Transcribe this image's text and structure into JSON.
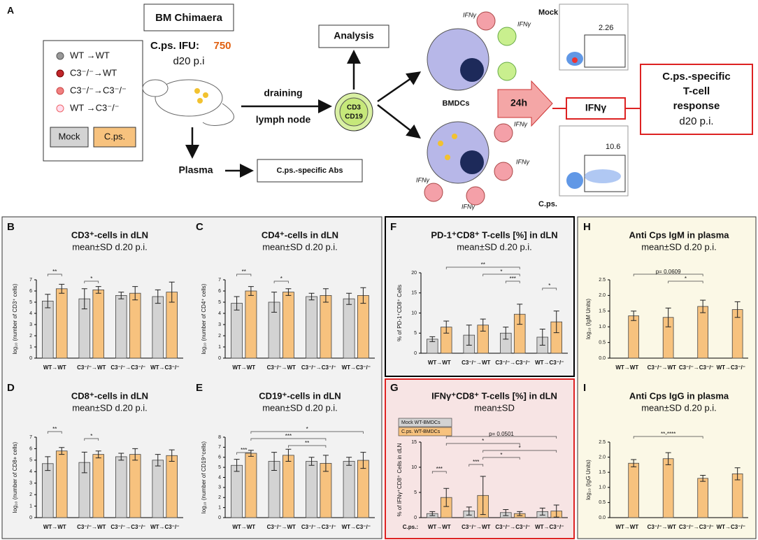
{
  "schematic": {
    "panel": "A",
    "title": "BM Chimaera",
    "ifu_label": "C.ps. IFU:",
    "ifu": 750,
    "day": "d20 p.i",
    "legend": [
      "WT →WT",
      "C3⁻/⁻→WT",
      "C3⁻/⁻→C3⁻/⁻",
      "WT →C3⁻/⁻"
    ],
    "groups": [
      "Mock",
      "C.ps."
    ],
    "route": [
      "draining",
      "lymph node"
    ],
    "markers": [
      "CD3",
      "CD19"
    ],
    "analysis": "Analysis",
    "plasma": "Plasma",
    "abs": "C.ps.-specific Abs",
    "cytokine": "IFNγ",
    "bmdc": "BMDCs",
    "time": "24h",
    "flow": [
      {
        "label": "Mock",
        "value": 2.26
      },
      {
        "label": "C.ps.",
        "value": 10.6
      }
    ],
    "result": [
      "C.ps.-specific",
      "T-cell",
      "response",
      "d20 p.i."
    ]
  },
  "chart_data": [
    {
      "type": "bar",
      "panel": "B",
      "title": "CD3⁺-cells in dLN",
      "subtitle": "mean±SD d.20 p.i.",
      "ylabel": "log₁₀ (number of CD3⁺ cells)",
      "categories": [
        "WT→WT",
        "C3⁻/⁻→WT",
        "C3⁻/⁻→C3⁻/⁻",
        "WT→C3⁻/⁻"
      ],
      "series": [
        {
          "color": "#d3d3d3",
          "values": [
            5.1,
            5.3,
            5.6,
            5.5
          ],
          "errors": [
            0.6,
            0.9,
            0.3,
            0.6
          ]
        },
        {
          "color": "#f7c27e",
          "values": [
            6.2,
            6.1,
            5.8,
            5.9
          ],
          "errors": [
            0.4,
            0.3,
            0.6,
            0.9
          ]
        }
      ],
      "ylim": [
        0,
        7
      ],
      "yticks": [
        0,
        1,
        2,
        3,
        4,
        5,
        6,
        7
      ],
      "annotations": [
        {
          "text": "**",
          "between": [
            0,
            1
          ]
        },
        {
          "text": "*",
          "between": [
            2,
            3
          ]
        }
      ]
    },
    {
      "type": "bar",
      "panel": "C",
      "title": "CD4⁺-cells in dLN",
      "subtitle": "mean±SD d.20 p.i.",
      "ylabel": "log₁₀ (number of CD4⁺ cells)",
      "categories": [
        "WT→WT",
        "C3⁻/⁻→WT",
        "C3⁻/⁻→C3⁻/⁻",
        "WT→C3⁻/⁻"
      ],
      "series": [
        {
          "color": "#d3d3d3",
          "values": [
            4.9,
            5.0,
            5.5,
            5.3
          ],
          "errors": [
            0.6,
            0.9,
            0.3,
            0.5
          ]
        },
        {
          "color": "#f7c27e",
          "values": [
            6.0,
            5.9,
            5.6,
            5.6
          ],
          "errors": [
            0.4,
            0.3,
            0.6,
            0.7
          ]
        }
      ],
      "ylim": [
        0,
        7
      ],
      "yticks": [
        0,
        1,
        2,
        3,
        4,
        5,
        6,
        7
      ],
      "annotations": [
        {
          "text": "**",
          "between": [
            0,
            1
          ]
        },
        {
          "text": "*",
          "between": [
            2,
            3
          ]
        }
      ]
    },
    {
      "type": "bar",
      "panel": "D",
      "title": "CD8⁺-cells in dLN",
      "subtitle": "mean±SD d.20 p.i.",
      "ylabel": "log₁₀ (number of CD8+ cells)",
      "categories": [
        "WT→WT",
        "C3⁻/⁻→WT",
        "C3⁻/⁻→C3⁻/⁻",
        "WT→C3⁻/⁻"
      ],
      "series": [
        {
          "color": "#d3d3d3",
          "values": [
            4.7,
            4.8,
            5.3,
            5.0
          ],
          "errors": [
            0.6,
            0.9,
            0.3,
            0.5
          ]
        },
        {
          "color": "#f7c27e",
          "values": [
            5.8,
            5.5,
            5.5,
            5.4
          ],
          "errors": [
            0.3,
            0.3,
            0.5,
            0.5
          ]
        }
      ],
      "ylim": [
        0,
        7
      ],
      "yticks": [
        0,
        1,
        2,
        3,
        4,
        5,
        6,
        7
      ],
      "annotations": [
        {
          "text": "**",
          "between": [
            0,
            1
          ]
        },
        {
          "text": "*",
          "between": [
            2,
            3
          ]
        }
      ]
    },
    {
      "type": "bar",
      "panel": "E",
      "title": "CD19⁺-cells in dLN",
      "subtitle": "mean±SD d.20 p.i.",
      "ylabel": "log₁₀ (number of CD19⁺cells)",
      "categories": [
        "WT→WT",
        "C3⁻/⁻→WT",
        "C3⁻/⁻→C3⁻/⁻",
        "WT→C3⁻/⁻"
      ],
      "series": [
        {
          "color": "#d3d3d3",
          "values": [
            5.2,
            5.6,
            5.6,
            5.6
          ],
          "errors": [
            0.6,
            0.9,
            0.4,
            0.4
          ]
        },
        {
          "color": "#f7c27e",
          "values": [
            6.4,
            6.2,
            5.4,
            5.7
          ],
          "errors": [
            0.3,
            0.6,
            0.8,
            0.8
          ]
        }
      ],
      "ylim": [
        0,
        8
      ],
      "yticks": [
        0,
        1,
        2,
        3,
        4,
        5,
        6,
        7,
        8
      ],
      "annotations": [
        {
          "text": "*",
          "between": [
            1,
            7
          ]
        },
        {
          "text": "***",
          "between": [
            1,
            5
          ]
        },
        {
          "text": "**",
          "between": [
            3,
            5
          ]
        },
        {
          "text": "***",
          "between": [
            0,
            1
          ]
        }
      ]
    },
    {
      "type": "bar",
      "panel": "F",
      "title": "PD-1⁺CD8⁺ T-cells [%] in dLN",
      "subtitle": "mean±SD d.20 p.i.",
      "ylabel": "% of PD-1⁺CD8⁺ Cells",
      "categories": [
        "WT→WT",
        "C3⁻/⁻→WT",
        "C3⁻/⁻→C3⁻/⁻",
        "WT→C3⁻/⁻"
      ],
      "series": [
        {
          "color": "#d3d3d3",
          "values": [
            3.5,
            4.5,
            5,
            4
          ],
          "errors": [
            0.6,
            2.5,
            1.5,
            2
          ]
        },
        {
          "color": "#f7c27e",
          "values": [
            6.5,
            7,
            9.7,
            7.8
          ],
          "errors": [
            1.5,
            1.5,
            2.5,
            2.7
          ]
        }
      ],
      "ylim": [
        0,
        20
      ],
      "yticks": [
        0,
        5,
        10,
        15,
        20
      ],
      "annotations": [
        {
          "text": "**",
          "between": [
            1,
            5
          ]
        },
        {
          "text": "*",
          "between": [
            3,
            5
          ]
        },
        {
          "text": "***",
          "between": [
            4,
            5
          ]
        },
        {
          "text": "*",
          "between": [
            6,
            7
          ]
        }
      ]
    },
    {
      "type": "bar",
      "panel": "G",
      "title": "IFNγ⁺CD8⁺ T-cells [%] in dLN",
      "subtitle": "mean±SD",
      "ylabel": "% of IFNγ⁺CD8⁺ Cells in dLN",
      "category_prefix": "C.ps.:",
      "categories": [
        "WT→WT",
        "C3⁻/⁻→WT",
        "C3⁻/⁻→C3⁻/⁻",
        "WT→C3⁻/⁻"
      ],
      "series": [
        {
          "name": "Mock WT-BMDCs",
          "color": "#d3d3d3",
          "values": [
            0.8,
            1.3,
            1,
            1.2
          ],
          "errors": [
            0.4,
            0.8,
            0.6,
            0.7
          ]
        },
        {
          "name": "C.ps. WT-BMDCs",
          "color": "#f7c27e",
          "values": [
            4,
            4.4,
            0.8,
            1.3
          ],
          "errors": [
            1.8,
            3.8,
            0.4,
            1.2
          ]
        }
      ],
      "ylim": [
        0,
        15
      ],
      "yticks": [
        0,
        5,
        10,
        15
      ],
      "annotations": [
        {
          "text": "p= 0.0501",
          "between": [
            1,
            7
          ]
        },
        {
          "text": "*",
          "between": [
            1,
            5
          ]
        },
        {
          "text": "*",
          "between": [
            3,
            7
          ]
        },
        {
          "text": "*",
          "between": [
            3,
            5
          ]
        },
        {
          "text": "***",
          "between": [
            2,
            3
          ]
        },
        {
          "text": "***",
          "between": [
            0,
            1
          ]
        }
      ]
    },
    {
      "type": "bar",
      "panel": "H",
      "title": "Anti Cps IgM in plasma",
      "subtitle": "mean±SD d.20 p.i.",
      "ylabel": "log₁₀ (IgM Units)",
      "categories": [
        "WT→WT",
        "C3⁻/⁻→WT",
        "C3⁻/⁻→C3⁻/⁻",
        "WT→C3⁻/⁻"
      ],
      "series": [
        {
          "color": "#d3d3d3",
          "values": [
            0,
            0,
            0,
            0
          ],
          "errors": [
            0,
            0,
            0,
            0
          ]
        },
        {
          "color": "#f7c27e",
          "values": [
            1.35,
            1.3,
            1.65,
            1.55
          ],
          "errors": [
            0.15,
            0.3,
            0.2,
            0.25
          ]
        }
      ],
      "ylim": [
        0,
        2.5
      ],
      "yticks": [
        {
          "value": 0,
          "label": "0.0"
        },
        {
          "value": 0.5,
          "label": "0.5"
        },
        {
          "value": 1,
          "label": "1.0"
        },
        {
          "value": 1.5,
          "label": "1.5"
        },
        {
          "value": 2,
          "label": "2.0"
        },
        {
          "value": 2.5,
          "label": "2.5"
        }
      ],
      "annotations": [
        {
          "text": "p= 0.0609",
          "between": [
            1,
            5
          ]
        },
        {
          "text": "*",
          "between": [
            3,
            5
          ]
        }
      ]
    },
    {
      "type": "bar",
      "panel": "I",
      "title": "Anti Cps IgG in plasma",
      "subtitle": "mean±SD d.20 p.i.",
      "ylabel": "log₁₀ (IgG Units)",
      "categories": [
        "WT→WT",
        "C3⁻/⁻→WT",
        "C3⁻/⁻→C3⁻/⁻",
        "WT→C3⁻/⁻"
      ],
      "series": [
        {
          "color": "#d3d3d3",
          "values": [
            0,
            0,
            0,
            0
          ],
          "errors": [
            0,
            0,
            0,
            0
          ]
        },
        {
          "color": "#f7c27e",
          "values": [
            1.8,
            1.95,
            1.3,
            1.45
          ],
          "errors": [
            0.12,
            0.2,
            0.1,
            0.2
          ]
        }
      ],
      "ylim": [
        0,
        2.5
      ],
      "yticks": [
        {
          "value": 0,
          "label": "0.0"
        },
        {
          "value": 0.5,
          "label": "0.5"
        },
        {
          "value": 1,
          "label": "1.0"
        },
        {
          "value": 1.5,
          "label": "1.5"
        },
        {
          "value": 2,
          "label": "2.0"
        },
        {
          "value": 2.5,
          "label": "2.5"
        }
      ],
      "annotations": [
        {
          "text": "**-****",
          "between": [
            1,
            5
          ]
        }
      ]
    }
  ]
}
